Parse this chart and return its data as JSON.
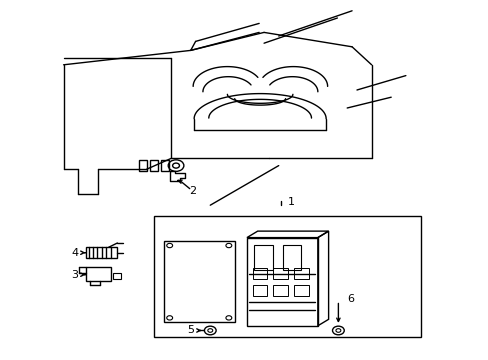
{
  "background_color": "#ffffff",
  "line_color": "#000000",
  "fig_width": 4.89,
  "fig_height": 3.6,
  "dpi": 100,
  "lw": 1.0
}
